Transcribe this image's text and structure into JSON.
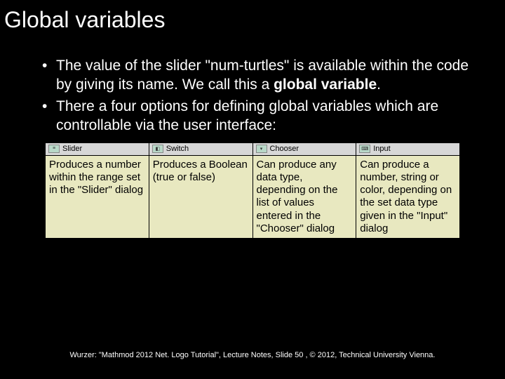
{
  "title": "Global variables",
  "bullets": [
    {
      "pre": "The value of the slider \"num-turtles\" is available within the code by giving its name. We call this a ",
      "bold": "global variable",
      "post": "."
    },
    {
      "pre": "There a four options for defining global variables which are controllable via the user interface:",
      "bold": "",
      "post": ""
    }
  ],
  "table": {
    "headers": [
      {
        "icon": "≡",
        "label": "Slider"
      },
      {
        "icon": "◧",
        "label": "Switch"
      },
      {
        "icon": "▾",
        "label": "Chooser"
      },
      {
        "icon": "⌨",
        "label": "Input"
      }
    ],
    "cells": [
      "Produces a number within the range set in the \"Slider\" dialog",
      "Produces a Boolean (true or false)",
      "Can produce any data type, depending on the list of values entered in the \"Chooser\" dialog",
      "Can produce a number, string or color, depending on the set data type given in the \"Input\" dialog"
    ],
    "header_bg": "#d7d7d7",
    "cell_bg": "#e8e8c0",
    "border_color": "#000000"
  },
  "footer": "Wurzer: \"Mathmod 2012 Net. Logo Tutorial\", Lecture Notes, Slide 50 , © 2012, Technical University Vienna.",
  "colors": {
    "background": "#000000",
    "text": "#ffffff"
  },
  "fonts": {
    "title_size": 32,
    "bullet_size": 21,
    "cell_size": 15,
    "footer_size": 11
  }
}
